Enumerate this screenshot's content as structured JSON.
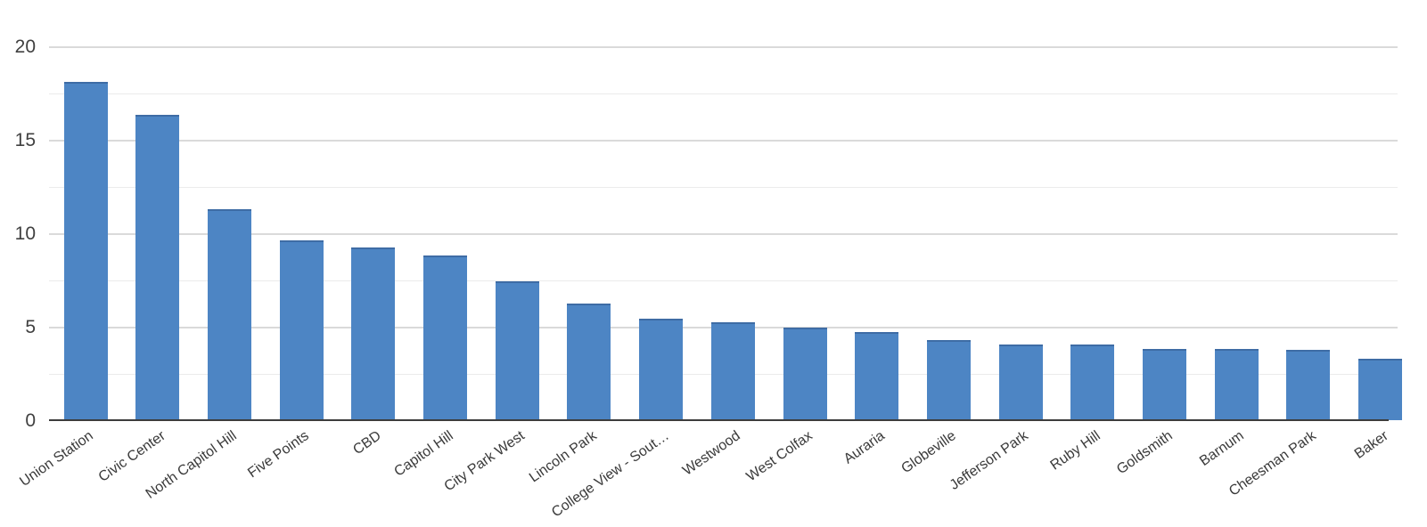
{
  "chart_data": {
    "type": "bar",
    "title": "",
    "xlabel": "",
    "ylabel": "",
    "categories": [
      "Union Station",
      "Civic Center",
      "North Capitol Hill",
      "Five Points",
      "CBD",
      "Capitol Hill",
      "City Park West",
      "Lincoln Park",
      "College View - Sout…",
      "Westwood",
      "West Colfax",
      "Auraria",
      "Globeville",
      "Jefferson Park",
      "Ruby Hill",
      "Goldsmith",
      "Barnum",
      "Cheesman Park",
      "Baker"
    ],
    "values": [
      18.1,
      16.35,
      11.3,
      9.6,
      9.25,
      8.8,
      7.45,
      6.25,
      5.45,
      5.25,
      4.95,
      4.7,
      4.3,
      4.05,
      4.05,
      3.8,
      3.8,
      3.75,
      3.3
    ],
    "ylim": [
      0,
      20
    ],
    "yticks": [
      0,
      5,
      10,
      15,
      20
    ],
    "ytick_labels": [
      "0",
      "5",
      "10",
      "15",
      "20"
    ],
    "minor_grid_step": 2.5,
    "grid": true,
    "legend_position": "none",
    "bar_color": "#4d85c4",
    "bar_edge_color": "#3e6ca5",
    "major_grid_color": "#dadada",
    "minor_grid_color": "#ebebeb",
    "axis_line_color": "#3c3c3c",
    "tick_label_color": "#404040",
    "x_label_rotation_deg": -35
  }
}
